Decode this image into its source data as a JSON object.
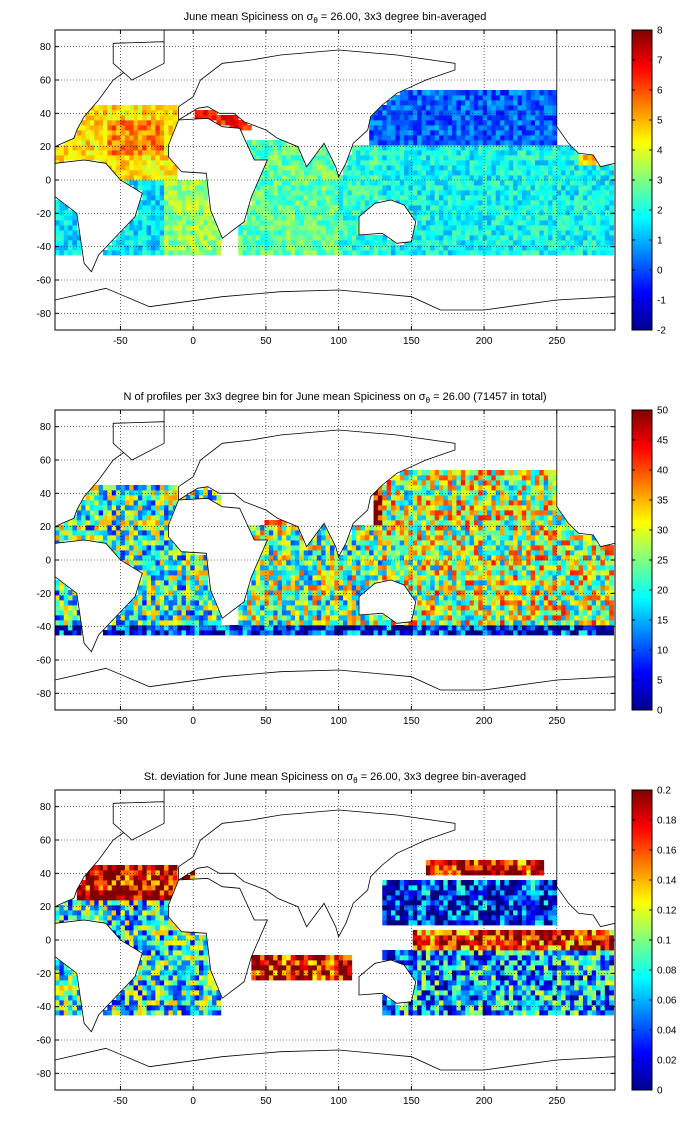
{
  "chart_data": [
    {
      "type": "heatmap",
      "title_pre": "June mean Spiciness on ",
      "title_sigma": "σ",
      "title_sub": "θ",
      "title_post": " = 26.00, 3x3 degree bin-averaged",
      "xlim": [
        -95,
        290
      ],
      "ylim": [
        -90,
        90
      ],
      "x_ticks": [
        -50,
        0,
        50,
        100,
        150,
        200,
        250
      ],
      "y_ticks": [
        -80,
        -60,
        -40,
        -20,
        0,
        20,
        40,
        60,
        80
      ],
      "grid": true,
      "colormap": "jet",
      "color_range": [
        -2,
        8
      ],
      "colorbar_ticks": [
        -2,
        -1,
        0,
        1,
        2,
        3,
        4,
        5,
        6,
        7,
        8
      ],
      "regions": [
        {
          "lon": [
            -95,
            -20
          ],
          "lat": [
            -45,
            0
          ],
          "value": 1.5
        },
        {
          "lon": [
            -20,
            20
          ],
          "lat": [
            -45,
            0
          ],
          "value": 3.2
        },
        {
          "lon": [
            -95,
            -10
          ],
          "lat": [
            0,
            45
          ],
          "value": 4.5
        },
        {
          "lon": [
            -60,
            -20
          ],
          "lat": [
            15,
            35
          ],
          "value": 5.5
        },
        {
          "lon": [
            0,
            40
          ],
          "lat": [
            30,
            42
          ],
          "value": 6.5
        },
        {
          "lon": [
            30,
            100
          ],
          "lat": [
            -45,
            25
          ],
          "value": 2.7
        },
        {
          "lon": [
            100,
            160
          ],
          "lat": [
            -45,
            20
          ],
          "value": 2.2
        },
        {
          "lon": [
            120,
            250
          ],
          "lat": [
            20,
            55
          ],
          "value": 0.2
        },
        {
          "lon": [
            130,
            290
          ],
          "lat": [
            -45,
            20
          ],
          "value": 1.8
        },
        {
          "lon": [
            265,
            290
          ],
          "lat": [
            10,
            40
          ],
          "value": 4.6
        }
      ]
    },
    {
      "type": "heatmap",
      "title_pre": "N of profiles per 3x3 degree bin for June mean Spiciness on ",
      "title_sigma": "σ",
      "title_sub": "θ",
      "title_post": " = 26.00 (71457 in total)",
      "xlim": [
        -95,
        290
      ],
      "ylim": [
        -90,
        90
      ],
      "x_ticks": [
        -50,
        0,
        50,
        100,
        150,
        200,
        250
      ],
      "y_ticks": [
        -80,
        -60,
        -40,
        -20,
        0,
        20,
        40,
        60,
        80
      ],
      "grid": true,
      "colormap": "jet",
      "color_range": [
        0,
        50
      ],
      "colorbar_ticks": [
        0,
        5,
        10,
        15,
        20,
        25,
        30,
        35,
        40,
        45,
        50
      ],
      "total": 71457,
      "regions": [
        {
          "lon": [
            -95,
            20
          ],
          "lat": [
            -45,
            45
          ],
          "value": 22
        },
        {
          "lon": [
            50,
            70
          ],
          "lat": [
            0,
            25
          ],
          "value": 48
        },
        {
          "lon": [
            125,
            180
          ],
          "lat": [
            15,
            45
          ],
          "value": 48
        },
        {
          "lon": [
            30,
            130
          ],
          "lat": [
            -45,
            20
          ],
          "value": 25
        },
        {
          "lon": [
            130,
            290
          ],
          "lat": [
            -45,
            55
          ],
          "value": 28
        },
        {
          "lon": [
            -95,
            290
          ],
          "lat": [
            -45,
            -38
          ],
          "value": 6
        }
      ]
    },
    {
      "type": "heatmap",
      "title_pre": "St. deviation for June mean Spiciness on ",
      "title_sigma": "σ",
      "title_sub": "θ",
      "title_post": " = 26.00, 3x3 degree bin-averaged",
      "xlim": [
        -95,
        290
      ],
      "ylim": [
        -90,
        90
      ],
      "x_ticks": [
        -50,
        0,
        50,
        100,
        150,
        200,
        250
      ],
      "y_ticks": [
        -80,
        -60,
        -40,
        -20,
        0,
        20,
        40,
        60,
        80
      ],
      "grid": true,
      "colormap": "jet",
      "color_range": [
        0,
        0.2
      ],
      "colorbar_ticks": [
        0,
        0.02,
        0.04,
        0.06,
        0.08,
        0.1,
        0.12,
        0.14,
        0.16,
        0.18,
        0.2
      ],
      "regions": [
        {
          "lon": [
            -80,
            0
          ],
          "lat": [
            25,
            45
          ],
          "value": 0.19
        },
        {
          "lon": [
            -95,
            20
          ],
          "lat": [
            -45,
            25
          ],
          "value": 0.08
        },
        {
          "lon": [
            40,
            110
          ],
          "lat": [
            -25,
            -10
          ],
          "value": 0.18
        },
        {
          "lon": [
            130,
            250
          ],
          "lat": [
            10,
            35
          ],
          "value": 0.03
        },
        {
          "lon": [
            150,
            290
          ],
          "lat": [
            -5,
            5
          ],
          "value": 0.17
        },
        {
          "lon": [
            130,
            290
          ],
          "lat": [
            -45,
            -5
          ],
          "value": 0.06
        },
        {
          "lon": [
            160,
            240
          ],
          "lat": [
            38,
            48
          ],
          "value": 0.18
        }
      ]
    }
  ]
}
